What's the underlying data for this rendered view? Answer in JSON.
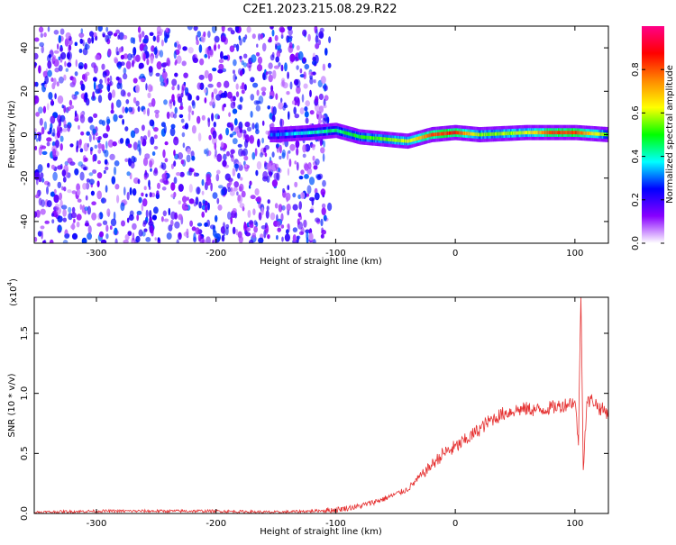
{
  "figure": {
    "title": "C2E1.2023.215.08.29.R22"
  },
  "chart_data": [
    {
      "type": "heatmap",
      "title": "C2E1.2023.215.08.29.R22",
      "xlabel": "Height of straight line (km)",
      "ylabel": "Frequency (Hz)",
      "xlim": [
        -352,
        128
      ],
      "ylim": [
        -50,
        50
      ],
      "x_ticks": [
        -300,
        -200,
        -100,
        0,
        100
      ],
      "y_ticks": [
        -40,
        -20,
        0,
        20,
        40
      ],
      "colorbar": {
        "label": "Normalized spectral amplitude",
        "range": [
          0,
          1
        ],
        "ticks": [
          0.0,
          0.2,
          0.4,
          0.6,
          0.8
        ],
        "colormap": [
          "#ffffff",
          "#8800ff",
          "#0000ff",
          "#00ffff",
          "#00ff00",
          "#ffff00",
          "#ff8800",
          "#ff0000",
          "#ff0088"
        ]
      },
      "description_of_signal": {
        "noise_region_x": [
          -352,
          -105
        ],
        "noise_amplitude_range": [
          0.05,
          0.3
        ],
        "signal_center_hz": [
          [
            -150,
            0
          ],
          [
            -120,
            1
          ],
          [
            -100,
            2
          ],
          [
            -80,
            -1
          ],
          [
            -60,
            -2
          ],
          [
            -40,
            -3
          ],
          [
            -20,
            0
          ],
          [
            0,
            1
          ],
          [
            20,
            0
          ],
          [
            60,
            1
          ],
          [
            100,
            1
          ],
          [
            128,
            0
          ]
        ],
        "signal_peak_amplitude": [
          [
            -150,
            0.3
          ],
          [
            -120,
            0.4
          ],
          [
            -100,
            0.45
          ],
          [
            -80,
            0.5
          ],
          [
            -60,
            0.55
          ],
          [
            -40,
            0.6
          ],
          [
            -20,
            0.8
          ],
          [
            0,
            0.85
          ],
          [
            20,
            0.55
          ],
          [
            60,
            0.6
          ],
          [
            80,
            0.82
          ],
          [
            100,
            0.82
          ],
          [
            128,
            0.5
          ]
        ]
      }
    },
    {
      "type": "line",
      "xlabel": "Height of straight line (km)",
      "ylabel": "SNR (10 * v/v)",
      "y_multiplier": "(x10",
      "y_multiplier_exp": "4",
      "y_multiplier_close": ")",
      "xlim": [
        -352,
        128
      ],
      "ylim": [
        0,
        1.8
      ],
      "x_ticks": [
        -300,
        -200,
        -100,
        0,
        100
      ],
      "y_ticks": [
        0.0,
        0.5,
        1.0,
        1.5
      ],
      "series": [
        {
          "color": "#e53030",
          "x": [
            -352,
            -300,
            -250,
            -200,
            -150,
            -120,
            -100,
            -80,
            -60,
            -50,
            -40,
            -30,
            -20,
            -10,
            0,
            10,
            20,
            30,
            40,
            50,
            60,
            70,
            80,
            90,
            95,
            100,
            103,
            105,
            107,
            110,
            115,
            120,
            128
          ],
          "y": [
            0.01,
            0.02,
            0.02,
            0.02,
            0.01,
            0.02,
            0.03,
            0.06,
            0.12,
            0.16,
            0.2,
            0.3,
            0.4,
            0.5,
            0.55,
            0.62,
            0.7,
            0.78,
            0.83,
            0.86,
            0.87,
            0.86,
            0.88,
            0.9,
            0.92,
            0.93,
            0.6,
            1.85,
            0.4,
            0.92,
            0.95,
            0.88,
            0.84
          ]
        }
      ]
    }
  ]
}
